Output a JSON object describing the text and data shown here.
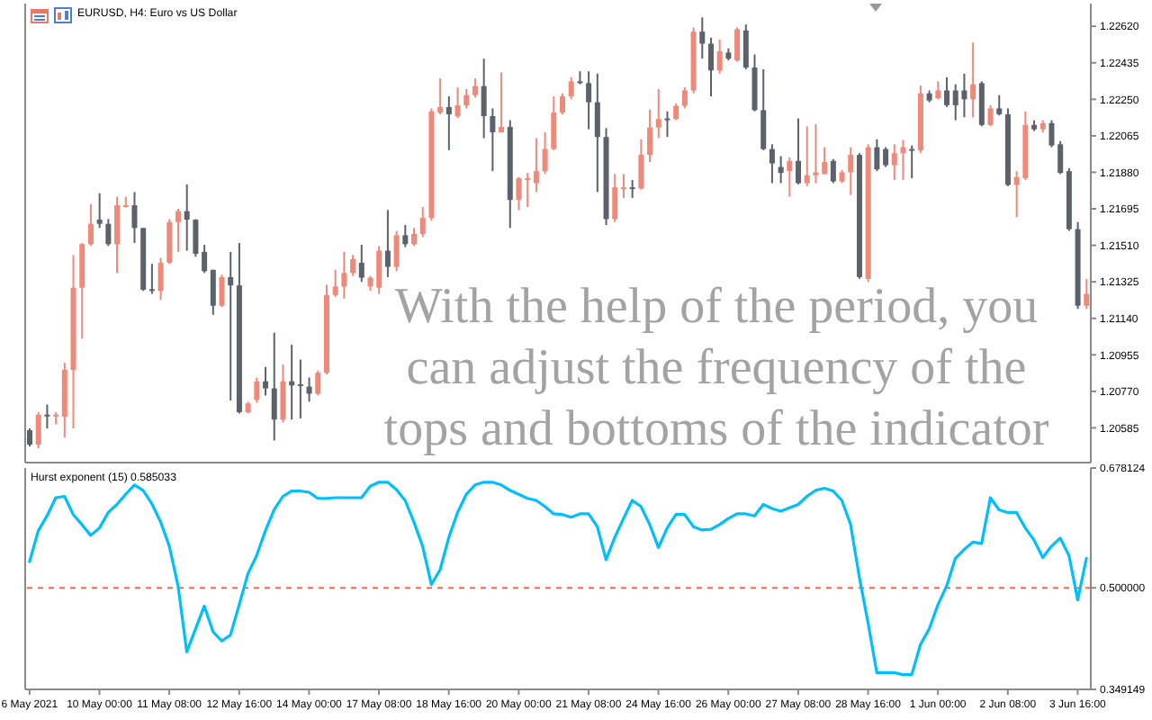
{
  "chart_data": [
    {
      "type": "candlestick",
      "title": "EURUSD, H4: Euro vs US Dollar",
      "annotations": [
        "With the help of the period, you can adjust the frequency of the tops and bottoms of the indicator"
      ],
      "categories": [
        null,
        null,
        null,
        null,
        null,
        null,
        null,
        null,
        null,
        null,
        null,
        null,
        null,
        null,
        null,
        null,
        null,
        null,
        null,
        null,
        null,
        null,
        null,
        null,
        null,
        null,
        null,
        null,
        null,
        null,
        null,
        null,
        null,
        null,
        null,
        null,
        null,
        null,
        null,
        null,
        null,
        null,
        null,
        null,
        null,
        null,
        null,
        null,
        null,
        null,
        null,
        null,
        null,
        null,
        null,
        null,
        null,
        null,
        null,
        null,
        null,
        null,
        null,
        null,
        null,
        null,
        null,
        null,
        null,
        null,
        null,
        null,
        null,
        null,
        null,
        null,
        null,
        null,
        null,
        null,
        null,
        null,
        null,
        null,
        null,
        null,
        null,
        null,
        null,
        null,
        null,
        null,
        null,
        null,
        null,
        null,
        null,
        null,
        null,
        null,
        null,
        null,
        null,
        null,
        null,
        null,
        null,
        null,
        null,
        null,
        null,
        null,
        null,
        null,
        null,
        null,
        null,
        null,
        null,
        null,
        null,
        null
      ],
      "ohlc": [
        [
          1.20573,
          1.20582,
          1.20491,
          1.205
        ],
        [
          1.205,
          1.20664,
          1.20482,
          1.20652
        ],
        [
          1.20652,
          1.20703,
          1.20582,
          1.20646
        ],
        [
          1.20646,
          1.20664,
          1.20603,
          1.20652
        ],
        [
          1.20642,
          1.20915,
          1.20536,
          1.20879
        ],
        [
          1.20879,
          1.21461,
          1.20582,
          1.21295
        ],
        [
          1.21295,
          1.21522,
          1.21037,
          1.21516
        ],
        [
          1.21516,
          1.21719,
          1.21507,
          1.21619
        ],
        [
          1.2164,
          1.21774,
          1.21598,
          1.21619
        ],
        [
          1.21619,
          1.21643,
          1.21507,
          1.21516
        ],
        [
          1.21516,
          1.21756,
          1.2137,
          1.21713
        ],
        [
          1.21707,
          1.21756,
          1.21701,
          1.21713
        ],
        [
          1.21713,
          1.2178,
          1.21522,
          1.21598
        ],
        [
          1.21598,
          1.21598,
          1.21279,
          1.21285
        ],
        [
          1.21288,
          1.21416,
          1.21264,
          1.21279
        ],
        [
          1.21279,
          1.21446,
          1.21234,
          1.21422
        ],
        [
          1.21422,
          1.21643,
          1.21416,
          1.21628
        ],
        [
          1.21628,
          1.21695,
          1.21477,
          1.21683
        ],
        [
          1.21683,
          1.21819,
          1.21483,
          1.2164
        ],
        [
          1.2164,
          1.21643,
          1.21452,
          1.21467
        ],
        [
          1.21477,
          1.21513,
          1.2137,
          1.21379
        ],
        [
          1.21386,
          1.21386,
          1.21158,
          1.21204
        ],
        [
          1.21204,
          1.21361,
          1.21198,
          1.21349
        ],
        [
          1.21349,
          1.21477,
          1.20724,
          1.21307
        ],
        [
          1.21307,
          1.21522,
          1.20658,
          1.20664
        ],
        [
          1.20664,
          1.20718,
          1.20658,
          1.20709
        ],
        [
          1.20727,
          1.2084,
          1.20712,
          1.20821
        ],
        [
          1.20821,
          1.20894,
          1.20749,
          1.20785
        ],
        [
          1.20785,
          1.21067,
          1.20521,
          1.20627
        ],
        [
          1.20627,
          1.20906,
          1.20612,
          1.20821
        ],
        [
          1.20821,
          1.21006,
          1.20627,
          1.208
        ],
        [
          1.20806,
          1.20931,
          1.20633,
          1.208
        ],
        [
          1.20794,
          1.2084,
          1.20718,
          1.20758
        ],
        [
          1.20758,
          1.20876,
          1.20749,
          1.20864
        ],
        [
          1.20864,
          1.2131,
          1.20855,
          1.21258
        ],
        [
          1.21258,
          1.21386,
          1.21249,
          1.21301
        ],
        [
          1.21301,
          1.21477,
          1.2124,
          1.2137
        ],
        [
          1.2137,
          1.21461,
          1.21355,
          1.2144
        ],
        [
          1.21422,
          1.21513,
          1.21325,
          1.21346
        ],
        [
          1.21301,
          1.21355,
          1.21279,
          1.21346
        ],
        [
          1.21295,
          1.21507,
          1.21264,
          1.21483
        ],
        [
          1.21483,
          1.21689,
          1.21349,
          1.21401
        ],
        [
          1.21401,
          1.21583,
          1.21379,
          1.21561
        ],
        [
          1.21561,
          1.21613,
          1.21501,
          1.21516
        ],
        [
          1.21516,
          1.21598,
          1.21507,
          1.21568
        ],
        [
          1.21568,
          1.21704,
          1.21552,
          1.21649
        ],
        [
          1.21649,
          1.22204,
          1.21634,
          1.22189
        ],
        [
          1.22183,
          1.22356,
          1.22174,
          1.22211
        ],
        [
          1.22211,
          1.22265,
          1.21992,
          1.22174
        ],
        [
          1.22165,
          1.22311,
          1.22156,
          1.2222
        ],
        [
          1.2222,
          1.22302,
          1.22204,
          1.22271
        ],
        [
          1.22271,
          1.22356,
          1.22259,
          1.22317
        ],
        [
          1.22317,
          1.22456,
          1.22053,
          1.22165
        ],
        [
          1.22165,
          1.22204,
          1.21886,
          1.22083
        ],
        [
          1.22083,
          1.22386,
          1.22083,
          1.2211
        ],
        [
          1.2211,
          1.22144,
          1.21598,
          1.2174
        ],
        [
          1.2174,
          1.21856,
          1.21689,
          1.2185
        ],
        [
          1.21841,
          1.21877,
          1.21704,
          1.2185
        ],
        [
          1.21825,
          1.22053,
          1.2178,
          1.21886
        ],
        [
          1.21886,
          1.22083,
          1.21871,
          1.21998
        ],
        [
          1.21998,
          1.22265,
          1.21992,
          1.22183
        ],
        [
          1.22183,
          1.2228,
          1.22174,
          1.22265
        ],
        [
          1.22265,
          1.22362,
          1.2225,
          1.22341
        ],
        [
          1.22341,
          1.22392,
          1.22326,
          1.22332
        ],
        [
          1.22332,
          1.22392,
          1.22098,
          1.22235
        ],
        [
          1.22235,
          1.2238,
          1.2178,
          1.22059
        ],
        [
          1.22059,
          1.22104,
          1.21613,
          1.21643
        ],
        [
          1.21643,
          1.21871,
          1.21628,
          1.21804
        ],
        [
          1.21798,
          1.21871,
          1.2175,
          1.21804
        ],
        [
          1.21804,
          1.21841,
          1.2175,
          1.21798
        ],
        [
          1.21798,
          1.22047,
          1.21792,
          1.21968
        ],
        [
          1.21968,
          1.22198,
          1.21932,
          1.22107
        ],
        [
          1.22107,
          1.22302,
          1.22053,
          1.2215
        ],
        [
          1.22153,
          1.22189,
          1.22059,
          1.2215
        ],
        [
          1.2215,
          1.22229,
          1.22144,
          1.22217
        ],
        [
          1.22217,
          1.22311,
          1.22204,
          1.22295
        ],
        [
          1.22295,
          1.22614,
          1.2228,
          1.22593
        ],
        [
          1.22593,
          1.22665,
          1.22456,
          1.22532
        ],
        [
          1.22532,
          1.22562,
          1.22265,
          1.22396
        ],
        [
          1.22396,
          1.22553,
          1.2238,
          1.22493
        ],
        [
          1.22487,
          1.22508,
          1.22447,
          1.22456
        ],
        [
          1.22447,
          1.22614,
          1.22441,
          1.22605
        ],
        [
          1.22599,
          1.22629,
          1.22402,
          1.22411
        ],
        [
          1.22411,
          1.22477,
          1.22189,
          1.22195
        ],
        [
          1.22195,
          1.22402,
          1.21992,
          1.21998
        ],
        [
          1.21998,
          1.22022,
          1.21825,
          1.21925
        ],
        [
          1.21907,
          1.21962,
          1.21825,
          1.21877
        ],
        [
          1.21886,
          1.21956,
          1.21756,
          1.21938
        ],
        [
          1.21938,
          1.22153,
          1.21819,
          1.21825
        ],
        [
          1.21825,
          1.22113,
          1.2181,
          1.21865
        ],
        [
          1.21865,
          1.22123,
          1.21825,
          1.2188
        ],
        [
          1.21871,
          1.22007,
          1.21871,
          1.21932
        ],
        [
          1.21938,
          1.21947,
          1.21825,
          1.21834
        ],
        [
          1.21834,
          1.21892,
          1.21825,
          1.2188
        ],
        [
          1.2188,
          1.22007,
          1.21765,
          1.21968
        ],
        [
          1.21968,
          1.21977,
          1.2134,
          1.21349
        ],
        [
          1.2134,
          1.22022,
          1.21325,
          1.22007
        ],
        [
          1.22007,
          1.22047,
          1.21886,
          1.21895
        ],
        [
          1.21998,
          1.22007,
          1.21907,
          1.21916
        ],
        [
          1.21916,
          1.22022,
          1.21841,
          1.21977
        ],
        [
          1.21977,
          1.22044,
          1.21841,
          1.22007
        ],
        [
          1.21998,
          1.22016,
          1.2185,
          1.21992
        ],
        [
          1.21992,
          1.2232,
          1.21977,
          1.2228
        ],
        [
          1.2228,
          1.22295,
          1.22235,
          1.22244
        ],
        [
          1.22256,
          1.22341,
          1.2225,
          1.22295
        ],
        [
          1.22295,
          1.22362,
          1.22211,
          1.2222
        ],
        [
          1.22295,
          1.22326,
          1.22144,
          1.2222
        ],
        [
          1.22295,
          1.2238,
          1.22159,
          1.2225
        ],
        [
          1.2225,
          1.22538,
          1.22159,
          1.22326
        ],
        [
          1.22332,
          1.22341,
          1.22113,
          1.2212
        ],
        [
          1.2212,
          1.2222,
          1.22113,
          1.22204
        ],
        [
          1.22204,
          1.22271,
          1.22168,
          1.22174
        ],
        [
          1.22174,
          1.22204,
          1.2181,
          1.21816
        ],
        [
          1.21816,
          1.21886,
          1.21653,
          1.21856
        ],
        [
          1.2185,
          1.22189,
          1.21841,
          1.2212
        ],
        [
          1.2212,
          1.22144,
          1.22089,
          1.22098
        ],
        [
          1.22098,
          1.22144,
          1.22083,
          1.22129
        ],
        [
          1.22129,
          1.22144,
          1.22007,
          1.22016
        ],
        [
          1.22022,
          1.22038,
          1.21871,
          1.21877
        ],
        [
          1.21886,
          1.21901,
          1.21583,
          1.21592
        ],
        [
          1.21592,
          1.21628,
          1.21188,
          1.21204
        ],
        [
          1.21204,
          1.2134,
          1.21188,
          1.21264
        ]
      ],
      "colors": [
        "#5c626b",
        "#f0897a",
        "#5c626b",
        "#f0897a",
        "#f0897a",
        "#f0897a",
        "#f0897a",
        "#f0897a",
        "#5c626b",
        "#5c626b",
        "#f0897a",
        "#f0897a",
        "#5c626b",
        "#5c626b",
        "#5c626b",
        "#f0897a",
        "#f0897a",
        "#f0897a",
        "#5c626b",
        "#5c626b",
        "#5c626b",
        "#5c626b",
        "#f0897a",
        "#5c626b",
        "#5c626b",
        "#f0897a",
        "#f0897a",
        "#5c626b",
        "#5c626b",
        "#f0897a",
        "#5c626b",
        "#5c626b",
        "#5c626b",
        "#f0897a",
        "#f0897a",
        "#f0897a",
        "#f0897a",
        "#f0897a",
        "#5c626b",
        "#f0897a",
        "#f0897a",
        "#5c626b",
        "#f0897a",
        "#5c626b",
        "#f0897a",
        "#f0897a",
        "#f0897a",
        "#f0897a",
        "#5c626b",
        "#f0897a",
        "#f0897a",
        "#f0897a",
        "#5c626b",
        "#5c626b",
        "#f0897a",
        "#5c626b",
        "#f0897a",
        "#f0897a",
        "#f0897a",
        "#f0897a",
        "#f0897a",
        "#f0897a",
        "#f0897a",
        "#5c626b",
        "#5c626b",
        "#5c626b",
        "#5c626b",
        "#f0897a",
        "#f0897a",
        "#5c626b",
        "#f0897a",
        "#f0897a",
        "#f0897a",
        "#5c626b",
        "#f0897a",
        "#f0897a",
        "#f0897a",
        "#5c626b",
        "#5c626b",
        "#f0897a",
        "#5c626b",
        "#f0897a",
        "#5c626b",
        "#5c626b",
        "#5c626b",
        "#5c626b",
        "#5c626b",
        "#f0897a",
        "#5c626b",
        "#f0897a",
        "#f0897a",
        "#f0897a",
        "#5c626b",
        "#f0897a",
        "#f0897a",
        "#5c626b",
        "#f0897a",
        "#5c626b",
        "#5c626b",
        "#f0897a",
        "#f0897a",
        "#5c626b",
        "#f0897a",
        "#5c626b",
        "#f0897a",
        "#5c626b",
        "#5c626b",
        "#5c626b",
        "#f0897a",
        "#5c626b",
        "#f0897a",
        "#5c626b",
        "#5c626b",
        "#f0897a",
        "#f0897a",
        "#5c626b",
        "#f0897a",
        "#5c626b",
        "#5c626b",
        "#5c626b",
        "#5c626b",
        "#f0897a"
      ],
      "ylim": [
        1.20409,
        1.22735
      ],
      "yticks": [
        {
          "value": 1.2262,
          "label": "1.22620"
        },
        1.22435,
        {
          "value": 1.2225,
          "label": "1.22250"
        },
        1.22065,
        {
          "value": 1.2188,
          "label": "1.21880"
        },
        1.21695,
        {
          "value": 1.2151,
          "label": "1.21510"
        },
        1.21325,
        {
          "value": 1.2114,
          "label": "1.21140"
        },
        1.20955,
        {
          "value": 1.2077,
          "label": "1.20770"
        },
        1.20585
      ]
    },
    {
      "type": "line",
      "title": "Hurst exponent (15) 0.585033",
      "categories": [
        "6 May 2021",
        null,
        null,
        null,
        null,
        null,
        null,
        null,
        "10 May 00:00",
        null,
        null,
        null,
        null,
        null,
        null,
        null,
        "11 May 08:00",
        null,
        null,
        null,
        null,
        null,
        null,
        null,
        "12 May 16:00",
        null,
        null,
        null,
        null,
        null,
        null,
        null,
        "14 May 00:00",
        null,
        null,
        null,
        null,
        null,
        null,
        null,
        "17 May 08:00",
        null,
        null,
        null,
        null,
        null,
        null,
        null,
        "18 May 16:00",
        null,
        null,
        null,
        null,
        null,
        null,
        null,
        "20 May 00:00",
        null,
        null,
        null,
        null,
        null,
        null,
        null,
        "21 May 08:00",
        null,
        null,
        null,
        null,
        null,
        null,
        null,
        "24 May 16:00",
        null,
        null,
        null,
        null,
        null,
        null,
        null,
        "26 May 00:00",
        null,
        null,
        null,
        null,
        null,
        null,
        null,
        "27 May 08:00",
        null,
        null,
        null,
        null,
        null,
        null,
        null,
        "28 May 16:00",
        null,
        null,
        null,
        null,
        null,
        null,
        null,
        "1 Jun 00:00",
        null,
        null,
        null,
        null,
        null,
        null,
        null,
        "2 Jun 08:00",
        null,
        null,
        null,
        null,
        null,
        null,
        null,
        "3 Jun 16:00",
        null
      ],
      "series": [
        {
          "color": "#00bfff",
          "values": [
            0.539,
            0.585,
            0.607,
            0.634,
            0.636,
            0.609,
            0.594,
            0.578,
            0.589,
            0.612,
            0.624,
            0.639,
            0.653,
            0.645,
            0.625,
            0.598,
            0.562,
            0.503,
            0.405,
            0.439,
            0.473,
            0.435,
            0.421,
            0.43,
            0.475,
            0.521,
            0.548,
            0.585,
            0.616,
            0.636,
            0.644,
            0.644,
            0.642,
            0.633,
            0.633,
            0.634,
            0.634,
            0.634,
            0.634,
            0.651,
            0.657,
            0.657,
            0.646,
            0.63,
            0.598,
            0.562,
            0.505,
            0.527,
            0.575,
            0.612,
            0.639,
            0.653,
            0.657,
            0.657,
            0.653,
            0.645,
            0.639,
            0.633,
            0.63,
            0.621,
            0.61,
            0.609,
            0.605,
            0.61,
            0.61,
            0.591,
            0.542,
            0.575,
            0.603,
            0.63,
            0.621,
            0.594,
            0.56,
            0.589,
            0.609,
            0.609,
            0.591,
            0.586,
            0.587,
            0.594,
            0.603,
            0.61,
            0.61,
            0.607,
            0.624,
            0.618,
            0.614,
            0.619,
            0.624,
            0.636,
            0.645,
            0.648,
            0.644,
            0.63,
            0.594,
            0.516,
            0.448,
            0.374,
            0.374,
            0.374,
            0.371,
            0.371,
            0.416,
            0.439,
            0.475,
            0.503,
            0.544,
            0.557,
            0.568,
            0.566,
            0.634,
            0.616,
            0.612,
            0.612,
            0.589,
            0.571,
            0.545,
            0.562,
            0.574,
            0.548,
            0.482,
            0.544
          ]
        }
      ],
      "ylim": [
        0.349149,
        0.678124
      ],
      "yticks": [
        0.678124,
        {
          "value": 0.5,
          "label": "0.500000"
        },
        0.349149
      ],
      "ref_lines": [
        {
          "axis": "y",
          "value": 0.5,
          "color": "#ff6347",
          "line_style": "dashed"
        }
      ],
      "marker": "none"
    }
  ]
}
